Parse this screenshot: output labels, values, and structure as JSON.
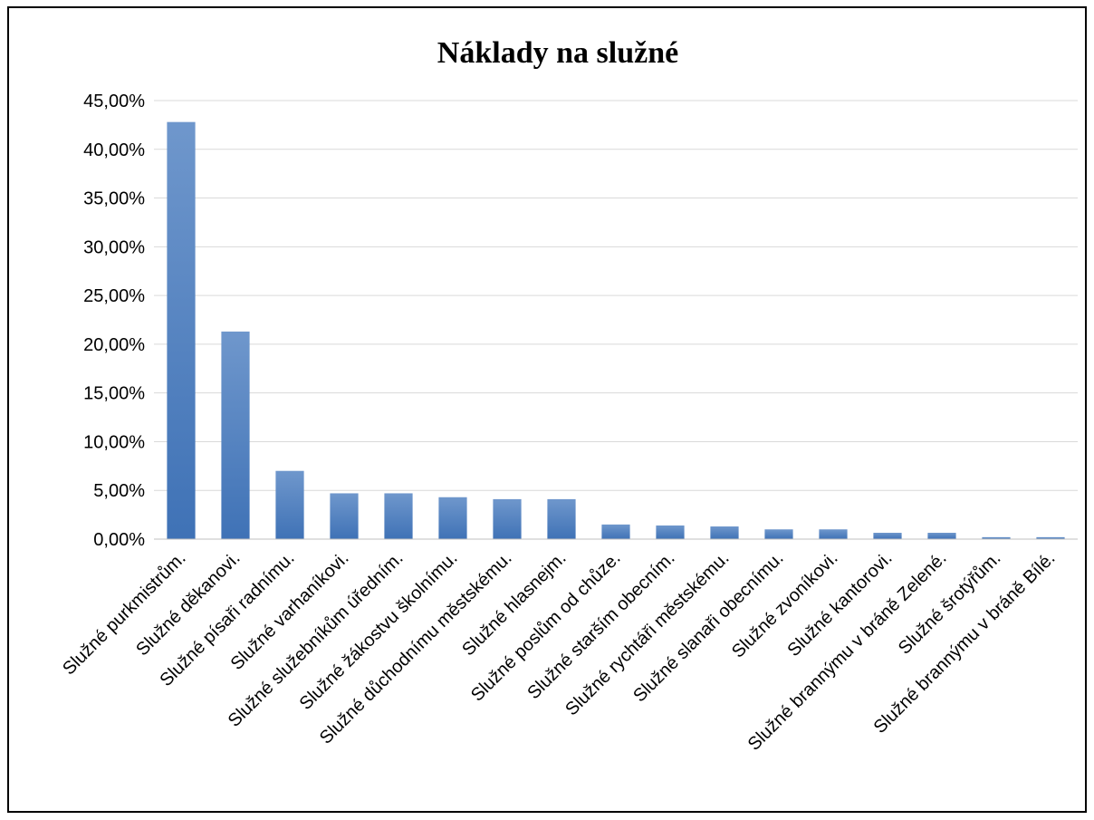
{
  "chart_data": {
    "type": "bar",
    "title": "Náklady na služné",
    "xlabel": "",
    "ylabel": "",
    "ylim": [
      0,
      45
    ],
    "yticks": [
      "0,00%",
      "5,00%",
      "10,00%",
      "15,00%",
      "20,00%",
      "25,00%",
      "30,00%",
      "35,00%",
      "40,00%",
      "45,00%"
    ],
    "grid": true,
    "legend": "none",
    "bar_color": "#4f81bd",
    "categories": [
      "Služné purkmistrům.",
      "Služné děkanovi.",
      "Služné písaři radnímu.",
      "Služné varhaníkovi.",
      "Služné služebníkům úředním.",
      "Služné žákostvu školnímu.",
      "Služné důchodnímu městskému.",
      "Služné hlasnejm.",
      "Služné poslům od chůze.",
      "Služné starším obecním.",
      "Služné rychtáři městskému.",
      "Služné slanaři obecnímu.",
      "Služné zvoníkovi.",
      "Služné kantorovi.",
      "Služné brannýmu v bráně Zelené.",
      "Služné šrotýřům.",
      "Služné brannýmu v bráně Bílé."
    ],
    "values": [
      42.8,
      21.3,
      7.0,
      4.7,
      4.7,
      4.3,
      4.1,
      4.1,
      1.5,
      1.4,
      1.3,
      1.0,
      1.0,
      0.65,
      0.65,
      0.2,
      0.2
    ]
  }
}
